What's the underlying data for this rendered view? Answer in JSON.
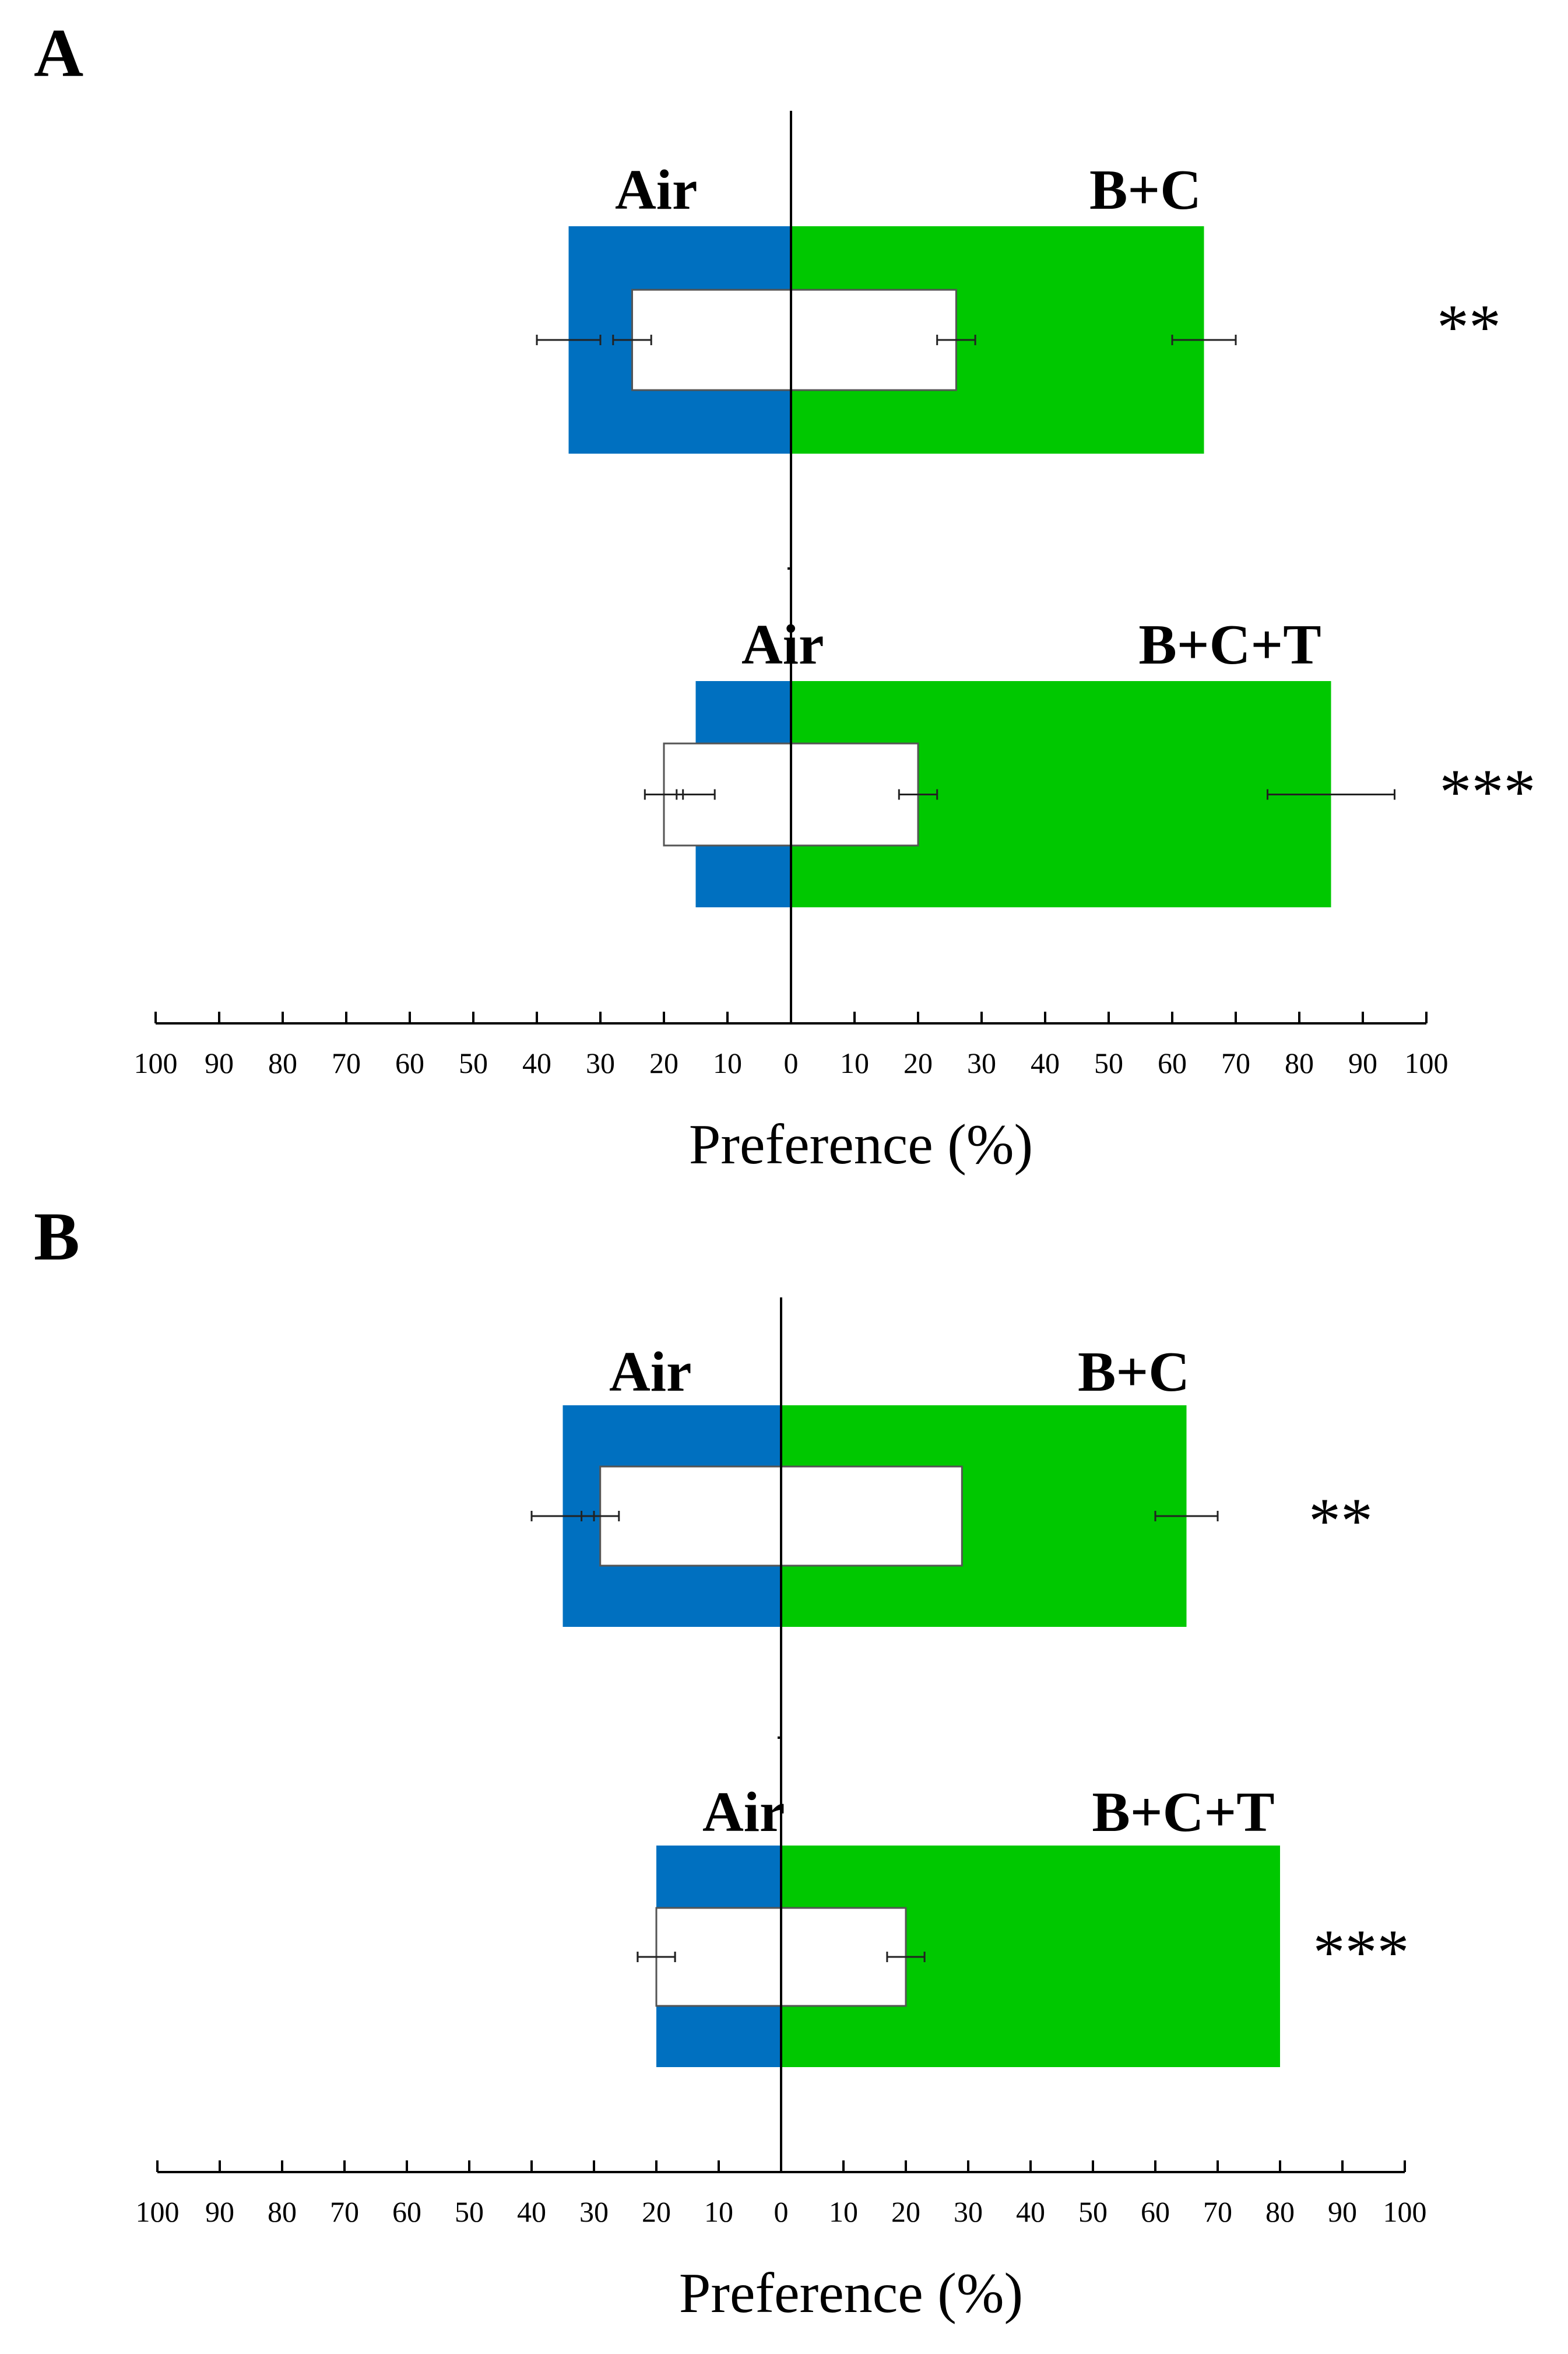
{
  "chart_data": [
    {
      "panel_label": "A",
      "type": "bar",
      "orientation": "horizontal-diverging",
      "xlabel": "Preference (%)",
      "xlim_left": [
        0,
        100
      ],
      "xlim_right": [
        0,
        100
      ],
      "ticks_left": [
        "100",
        "90",
        "80",
        "70",
        "60",
        "50",
        "40",
        "30",
        "20",
        "10"
      ],
      "ticks_right": [
        "0",
        "10",
        "20",
        "30",
        "40",
        "50",
        "60",
        "70",
        "80",
        "90",
        "100"
      ],
      "tick_values_left": [
        100,
        90,
        80,
        70,
        60,
        50,
        40,
        30,
        20,
        10
      ],
      "tick_values_right": [
        0,
        10,
        20,
        30,
        40,
        50,
        60,
        70,
        80,
        90,
        100
      ],
      "groups": [
        {
          "left_label": "Air",
          "right_label": "B+C",
          "left_value": 35,
          "left_error": 5,
          "right_value": 65,
          "right_error": 5,
          "inner_left_value": 25,
          "inner_left_error": 3,
          "inner_right_value": 26,
          "inner_right_error": 3,
          "significance": "**"
        },
        {
          "left_label": "Air",
          "right_label": "B+C+T",
          "left_value": 15,
          "left_error": 3,
          "right_value": 85,
          "right_error": 10,
          "inner_left_value": 20,
          "inner_left_error": 3,
          "inner_right_value": 20,
          "inner_right_error": 3,
          "significance": "***"
        }
      ],
      "colors": {
        "left": "#0070C0",
        "right": "#00C800",
        "inner": "#ffffff"
      }
    },
    {
      "panel_label": "B",
      "type": "bar",
      "orientation": "horizontal-diverging",
      "xlabel": "Preference (%)",
      "xlim_left": [
        0,
        100
      ],
      "xlim_right": [
        0,
        100
      ],
      "ticks_left": [
        "100",
        "90",
        "80",
        "70",
        "60",
        "50",
        "40",
        "30",
        "20",
        "10"
      ],
      "ticks_right": [
        "0",
        "10",
        "20",
        "30",
        "40",
        "50",
        "60",
        "70",
        "80",
        "90",
        "100"
      ],
      "tick_values_left": [
        100,
        90,
        80,
        70,
        60,
        50,
        40,
        30,
        20,
        10
      ],
      "tick_values_right": [
        0,
        10,
        20,
        30,
        40,
        50,
        60,
        70,
        80,
        90,
        100
      ],
      "groups": [
        {
          "left_label": "Air",
          "right_label": "B+C",
          "left_value": 35,
          "left_error": 5,
          "right_value": 65,
          "right_error": 5,
          "inner_left_value": 29,
          "inner_left_error": 3,
          "inner_right_value": 29,
          "inner_right_error": 0,
          "significance": "**"
        },
        {
          "left_label": "Air",
          "right_label": "B+C+T",
          "left_value": 20,
          "left_error": 3,
          "right_value": 80,
          "right_error": 0,
          "inner_left_value": 20,
          "inner_left_error": 3,
          "inner_right_value": 20,
          "inner_right_error": 3,
          "significance": "***"
        }
      ],
      "colors": {
        "left": "#0070C0",
        "right": "#00C800",
        "inner": "#ffffff"
      }
    }
  ]
}
